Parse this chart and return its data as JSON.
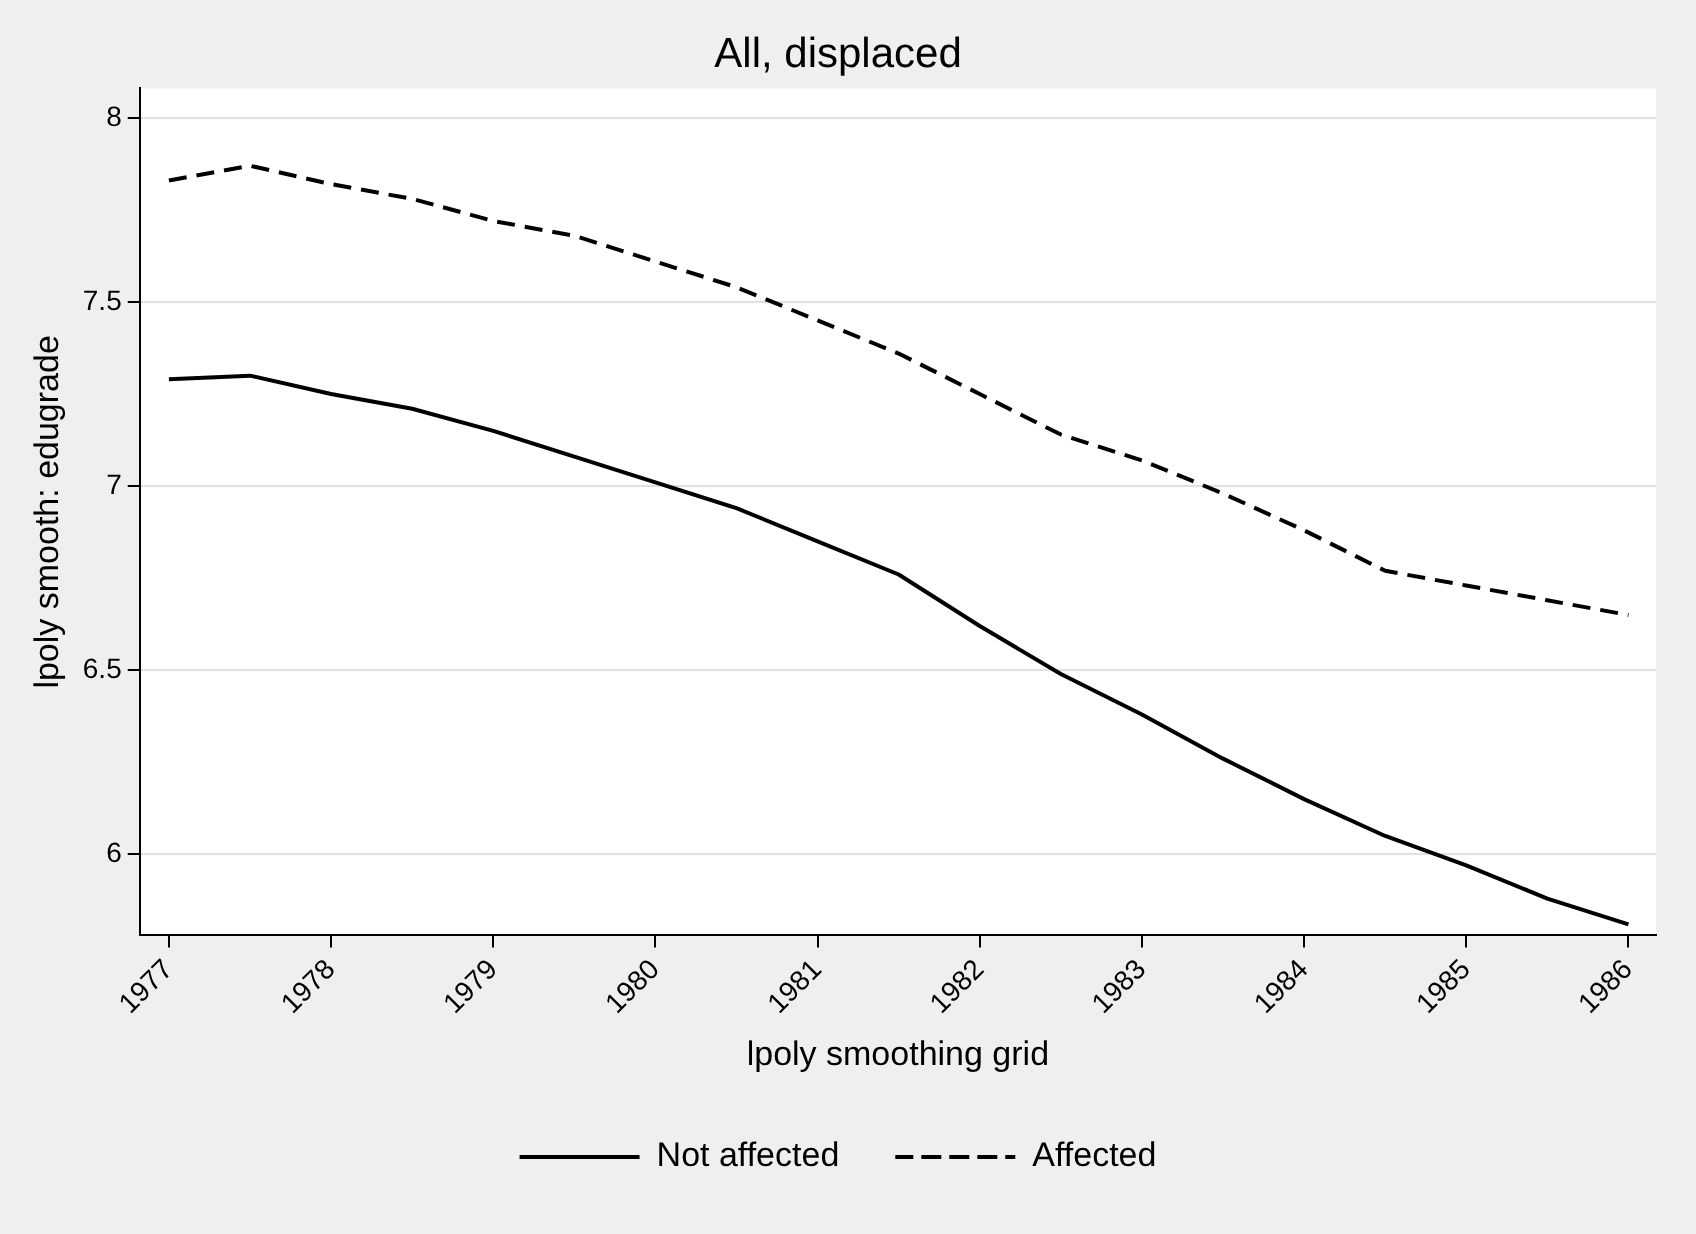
{
  "chart_data": {
    "type": "line",
    "title": "All, displaced",
    "xlabel": "lpoly smoothing grid",
    "ylabel": "lpoly smooth: edugrade",
    "x": [
      1977,
      1977.5,
      1978,
      1978.5,
      1979,
      1979.5,
      1980,
      1980.5,
      1981,
      1981.5,
      1982,
      1982.5,
      1983,
      1983.5,
      1984,
      1984.5,
      1985,
      1985.5,
      1986
    ],
    "series": [
      {
        "name": "Not affected",
        "color": "#000000",
        "line_style": "solid",
        "values": [
          7.29,
          7.3,
          7.25,
          7.21,
          7.15,
          7.08,
          7.01,
          6.94,
          6.85,
          6.76,
          6.62,
          6.49,
          6.38,
          6.26,
          6.15,
          6.05,
          5.97,
          5.88,
          5.81
        ]
      },
      {
        "name": "Affected",
        "color": "#000000",
        "line_style": "dashed",
        "values": [
          7.83,
          7.87,
          7.82,
          7.78,
          7.72,
          7.68,
          7.61,
          7.54,
          7.45,
          7.36,
          7.25,
          7.14,
          7.07,
          6.98,
          6.88,
          6.77,
          6.73,
          6.69,
          6.65
        ]
      }
    ],
    "xlim": [
      1976.82,
      1986.17
    ],
    "xticks": [
      1977,
      1978,
      1979,
      1980,
      1981,
      1982,
      1983,
      1984,
      1985,
      1986
    ],
    "ylim": [
      5.78,
      8.08
    ],
    "yticks": [
      6,
      {
        "value": 6.5,
        "label": "6.5"
      },
      7,
      {
        "value": 7.5,
        "label": "7.5"
      },
      8
    ],
    "grid": "y",
    "legend": "bottom",
    "marker": "none"
  }
}
